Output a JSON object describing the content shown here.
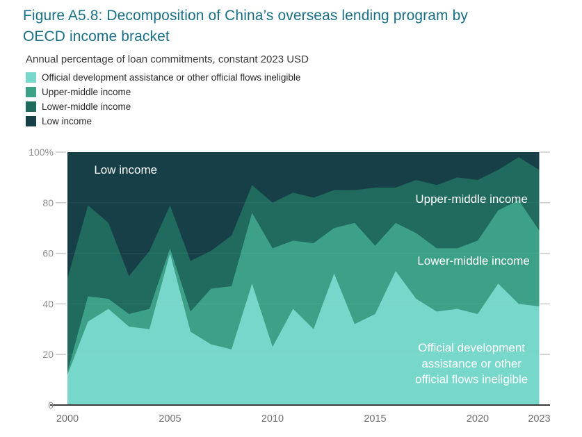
{
  "figure": {
    "title_line1": "Figure A5.8: Decomposition of China’s overseas lending program by",
    "title_line2": "OECD income bracket",
    "subtitle": "Annual percentage of loan commitments, constant 2023 USD",
    "title_color": "#1a6f87"
  },
  "legend": {
    "items": [
      {
        "label": "Official development assistance or other official flows ineligible",
        "color": "#76d7ca"
      },
      {
        "label": "Upper-middle income",
        "color": "#3da188"
      },
      {
        "label": "Lower-middle income",
        "color": "#206a5e"
      },
      {
        "label": "Low income",
        "color": "#173f48"
      }
    ]
  },
  "chart_data": {
    "type": "area",
    "stacked": true,
    "unit": "percent of annual loan commitments",
    "x": [
      2000,
      2001,
      2002,
      2003,
      2004,
      2005,
      2006,
      2007,
      2008,
      2009,
      2010,
      2011,
      2012,
      2013,
      2014,
      2015,
      2016,
      2017,
      2018,
      2019,
      2020,
      2021,
      2022,
      2023
    ],
    "series": [
      {
        "name": "Official development assistance or other official flows ineligible",
        "color": "#76d7ca",
        "values": [
          12,
          33,
          38,
          31,
          30,
          60,
          29,
          24,
          22,
          48,
          23,
          38,
          30,
          52,
          32,
          36,
          53,
          42,
          37,
          38,
          36,
          48,
          40,
          39
        ]
      },
      {
        "name": "Upper-middle income",
        "color": "#3da188",
        "values": [
          1,
          10,
          4,
          5,
          8,
          2,
          8,
          22,
          25,
          28,
          39,
          27,
          34,
          18,
          40,
          27,
          19,
          26,
          25,
          24,
          29,
          29,
          41,
          30
        ]
      },
      {
        "name": "Lower-middle income",
        "color": "#206a5e",
        "values": [
          37,
          36,
          30,
          15,
          23,
          17,
          20,
          15,
          20,
          11,
          18,
          19,
          18,
          15,
          13,
          23,
          14,
          21,
          25,
          28,
          24,
          16,
          17,
          24
        ]
      },
      {
        "name": "Low income",
        "color": "#173f48",
        "values": [
          50,
          21,
          28,
          49,
          39,
          21,
          43,
          39,
          33,
          13,
          20,
          16,
          18,
          15,
          15,
          14,
          14,
          11,
          13,
          10,
          11,
          7,
          2,
          7
        ]
      }
    ],
    "ylim": [
      0,
      100
    ],
    "y_ticks": [
      {
        "value": 0,
        "label": "0"
      },
      {
        "value": 20,
        "label": "20"
      },
      {
        "value": 40,
        "label": "40"
      },
      {
        "value": 60,
        "label": "60"
      },
      {
        "value": 80,
        "label": "80"
      },
      {
        "value": 100,
        "label": "100%"
      }
    ],
    "x_ticks": [
      {
        "value": 2000,
        "label": "2000"
      },
      {
        "value": 2005,
        "label": "2005"
      },
      {
        "value": 2010,
        "label": "2010"
      },
      {
        "value": 2015,
        "label": "2015"
      },
      {
        "value": 2020,
        "label": "2020"
      },
      {
        "value": 2023,
        "label": "2023"
      }
    ],
    "grid": "horizontal-subtle",
    "legend_position": "top-left",
    "annotations": [
      {
        "text": "Low income",
        "x": 2001.3,
        "y": 91.5,
        "anchor": "start"
      },
      {
        "text": "Upper-middle income",
        "x": 2019.7,
        "y": 80.0,
        "anchor": "middle"
      },
      {
        "text": "Lower-middle income",
        "x": 2019.8,
        "y": 55.5,
        "anchor": "middle"
      },
      {
        "text": "Official development",
        "x": 2019.7,
        "y": 21.2,
        "anchor": "middle"
      },
      {
        "text": "assistance or other",
        "x": 2019.7,
        "y": 14.9,
        "anchor": "middle"
      },
      {
        "text": "official flows ineligible",
        "x": 2019.7,
        "y": 8.6,
        "anchor": "middle"
      }
    ],
    "annotation_color": "#ffffff",
    "axis": {
      "line_color": "#3a3a3a",
      "tick_stub_color": "#c9c9c9",
      "y_label_color": "#8f8f8f",
      "x_label_color": "#6e6e6e"
    }
  }
}
